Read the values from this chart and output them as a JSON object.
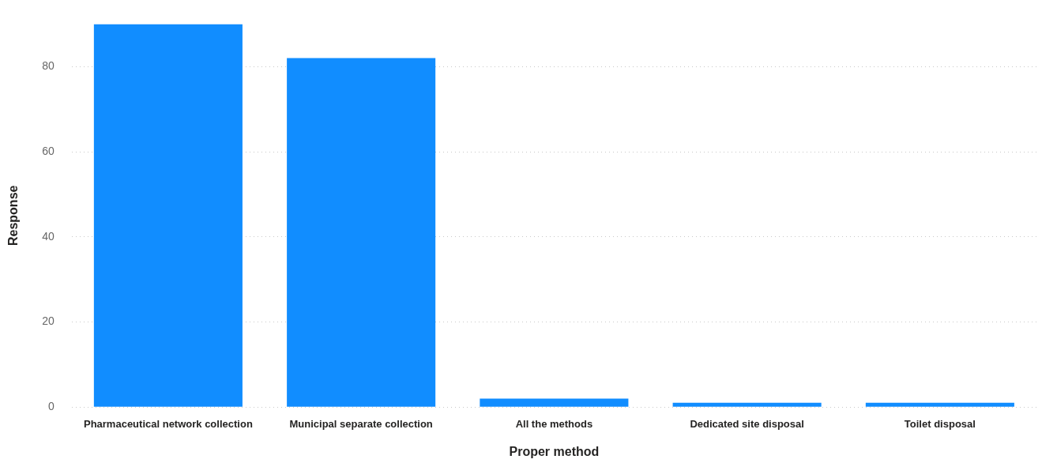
{
  "chart_data": {
    "type": "bar",
    "xlabel": "Proper method",
    "ylabel": "Response",
    "categories": [
      "Pharmaceutical network collection",
      "Municipal separate collection",
      "All the methods",
      "Dedicated site disposal",
      "Toilet disposal"
    ],
    "values": [
      90,
      82,
      2,
      1,
      1
    ],
    "color": "#118dff",
    "ylim": [
      0,
      90
    ],
    "yticks": [
      0,
      20,
      40,
      60,
      80
    ],
    "grid": "y"
  }
}
